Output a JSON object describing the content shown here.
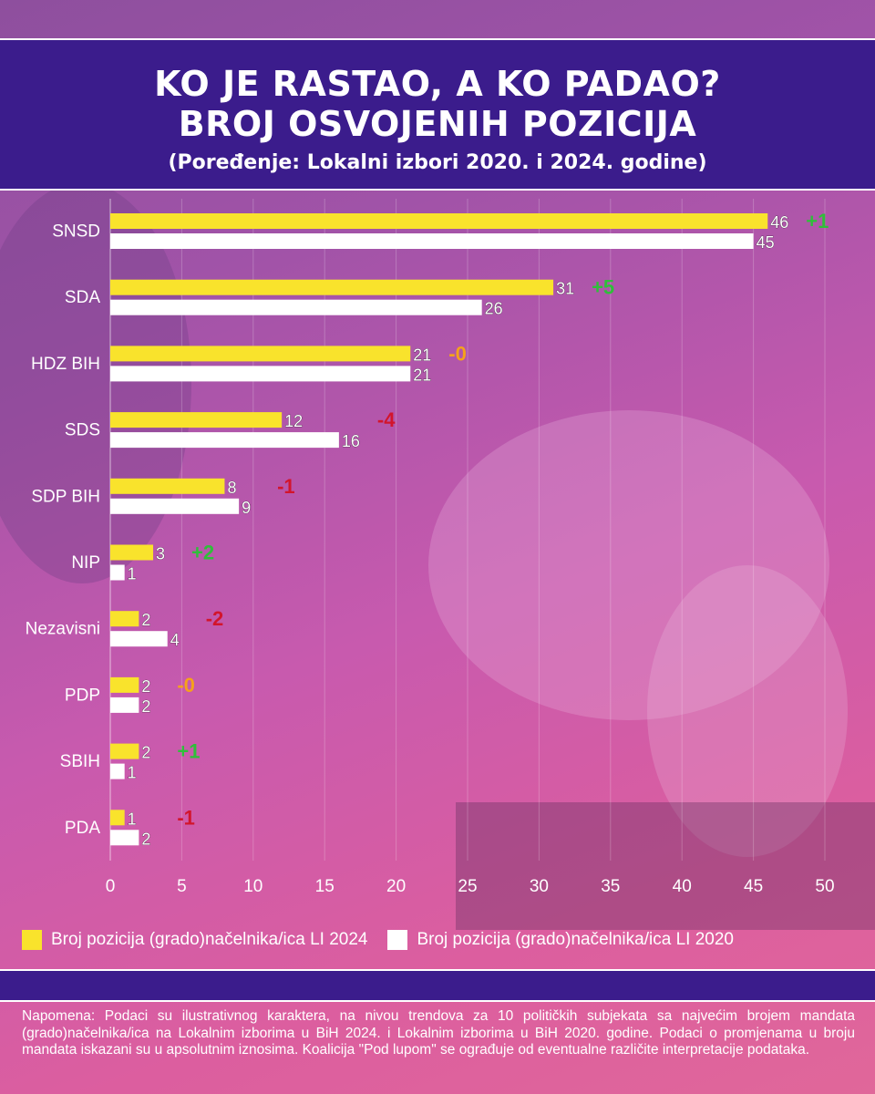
{
  "header": {
    "title_line1": "KO JE RASTAO, A KO PADAO?",
    "title_line2": "BROJ OSVOJENIH POZICIJA",
    "subtitle": "(Poređenje: Lokalni izbori 2020. i 2024. godine)"
  },
  "colors": {
    "header_bg": "#3b1c8c",
    "series_2024": "#f9e32c",
    "series_2020": "#ffffff",
    "positive": "#2fbf3a",
    "negative": "#d2152c",
    "neutral": "#f5a21b"
  },
  "chart_data": {
    "type": "bar",
    "orientation": "horizontal",
    "categories": [
      "SNSD",
      "SDA",
      "HDZ BIH",
      "SDS",
      "SDP BIH",
      "NIP",
      "Nezavisni",
      "PDP",
      "SBIH",
      "PDA"
    ],
    "series": [
      {
        "name": "Broj pozicija (grado)načelnika/ica LI 2024",
        "values": [
          46,
          31,
          21,
          12,
          8,
          3,
          2,
          2,
          2,
          1
        ]
      },
      {
        "name": "Broj pozicija (grado)načelnika/ica LI 2020",
        "values": [
          45,
          26,
          21,
          16,
          9,
          1,
          4,
          2,
          1,
          2
        ]
      }
    ],
    "differences": [
      "+1",
      "+5",
      "-0",
      "-4",
      "-1",
      "+2",
      "-2",
      "-0",
      "+1",
      "-1"
    ],
    "xlim": [
      0,
      50
    ],
    "xticks": [
      0,
      5,
      10,
      15,
      20,
      25,
      30,
      35,
      40,
      45,
      50
    ],
    "legend_position": "bottom",
    "grid": true
  },
  "note": "Napomena: Podaci su ilustrativnog karaktera, na nivou trendova za 10 političkih subjekata sa najvećim brojem mandata (grado)načelnika/ica na Lokalnim izborima u BiH 2024. i Lokalnim izborima u BiH 2020. godine. Podaci o promjenama u broju mandata iskazani su u apsolutnim iznosima. Koalicija \"Pod lupom\" se ograđuje od eventualne različite interpretacije podataka."
}
